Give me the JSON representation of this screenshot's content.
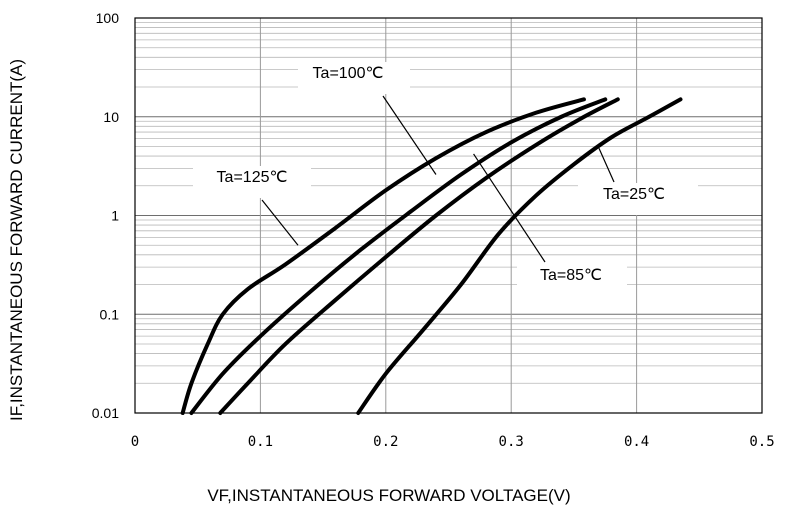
{
  "chart_data": {
    "type": "line",
    "title": "",
    "xlabel": "VF,INSTANTANEOUS FORWARD VOLTAGE(V)",
    "ylabel": "IF,INSTANTANEOUS FORWARD CURRENT(A)",
    "xlim": [
      0,
      0.5
    ],
    "ylim": [
      0.01,
      100
    ],
    "yscale": "log",
    "grid": true,
    "x_ticks": [
      {
        "value": 0,
        "label": "0"
      },
      {
        "value": 0.1,
        "label": "0.1"
      },
      {
        "value": 0.2,
        "label": "0.2"
      },
      {
        "value": 0.3,
        "label": "0.3"
      },
      {
        "value": 0.4,
        "label": "0.4"
      },
      {
        "value": 0.5,
        "label": "0.5"
      }
    ],
    "y_ticks": [
      {
        "value": 0.01,
        "label": "0.01"
      },
      {
        "value": 0.1,
        "label": "0.1"
      },
      {
        "value": 1,
        "label": "1"
      },
      {
        "value": 10,
        "label": "10"
      },
      {
        "value": 100,
        "label": "100"
      }
    ],
    "series": [
      {
        "name": "Ta=125℃",
        "points": [
          [
            0.038,
            0.01
          ],
          [
            0.045,
            0.02
          ],
          [
            0.058,
            0.05
          ],
          [
            0.07,
            0.1
          ],
          [
            0.09,
            0.18
          ],
          [
            0.12,
            0.32
          ],
          [
            0.16,
            0.75
          ],
          [
            0.2,
            1.8
          ],
          [
            0.24,
            3.8
          ],
          [
            0.28,
            7
          ],
          [
            0.32,
            11
          ],
          [
            0.358,
            15
          ]
        ]
      },
      {
        "name": "Ta=100℃",
        "points": [
          [
            0.045,
            0.01
          ],
          [
            0.07,
            0.025
          ],
          [
            0.1,
            0.06
          ],
          [
            0.14,
            0.17
          ],
          [
            0.18,
            0.45
          ],
          [
            0.22,
            1.1
          ],
          [
            0.26,
            2.6
          ],
          [
            0.3,
            5.5
          ],
          [
            0.34,
            10
          ],
          [
            0.375,
            15
          ]
        ]
      },
      {
        "name": "Ta=85℃",
        "points": [
          [
            0.068,
            0.01
          ],
          [
            0.09,
            0.02
          ],
          [
            0.12,
            0.05
          ],
          [
            0.16,
            0.14
          ],
          [
            0.2,
            0.38
          ],
          [
            0.24,
            1
          ],
          [
            0.28,
            2.4
          ],
          [
            0.32,
            5.2
          ],
          [
            0.355,
            9.5
          ],
          [
            0.385,
            15
          ]
        ]
      },
      {
        "name": "Ta=25℃",
        "points": [
          [
            0.178,
            0.01
          ],
          [
            0.2,
            0.025
          ],
          [
            0.23,
            0.07
          ],
          [
            0.26,
            0.2
          ],
          [
            0.29,
            0.65
          ],
          [
            0.32,
            1.6
          ],
          [
            0.35,
            3.3
          ],
          [
            0.38,
            6.2
          ],
          [
            0.41,
            10
          ],
          [
            0.435,
            15
          ]
        ]
      }
    ],
    "annotations": [
      {
        "text": "Ta=100℃",
        "series": "Ta=100℃"
      },
      {
        "text": "Ta=125℃",
        "series": "Ta=125℃"
      },
      {
        "text": "Ta=25℃",
        "series": "Ta=25℃"
      },
      {
        "text": "Ta=85℃",
        "series": "Ta=85℃"
      }
    ]
  }
}
